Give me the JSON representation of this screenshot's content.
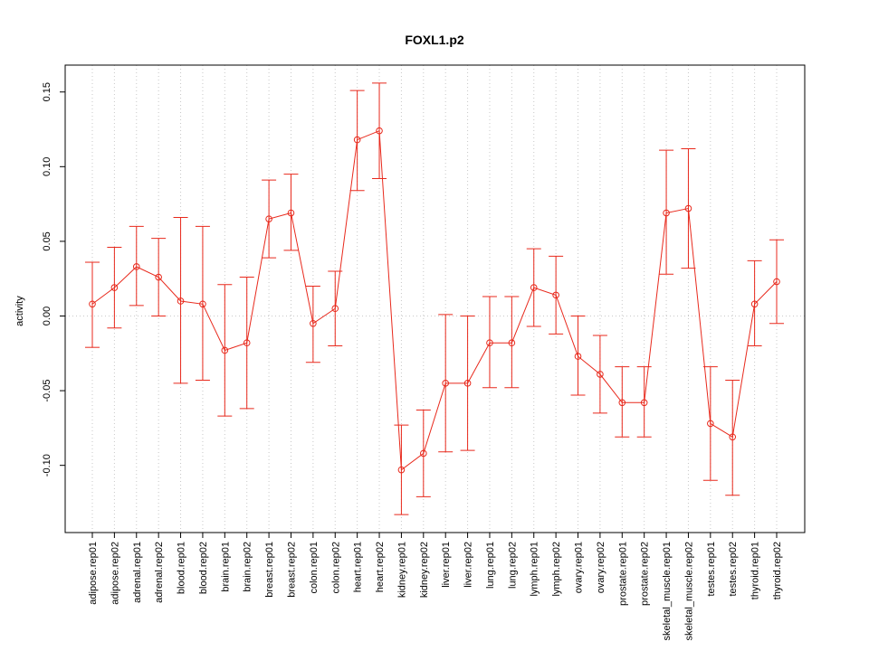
{
  "chart_data": {
    "type": "line",
    "title": "FOXL1.p2",
    "xlabel": "",
    "ylabel": "activity",
    "ylim": [
      -0.145,
      0.168
    ],
    "yticks": [
      -0.1,
      -0.05,
      0.0,
      0.05,
      0.1,
      0.15
    ],
    "ytick_labels": [
      "-0.10",
      "-0.05",
      "0.00",
      "0.05",
      "0.10",
      "0.15"
    ],
    "grid": true,
    "categories": [
      "adipose.rep01",
      "adipose.rep02",
      "adrenal.rep01",
      "adrenal.rep02",
      "blood.rep01",
      "blood.rep02",
      "brain.rep01",
      "brain.rep02",
      "breast.rep01",
      "breast.rep02",
      "colon.rep01",
      "colon.rep02",
      "heart.rep01",
      "heart.rep02",
      "kidney.rep01",
      "kidney.rep02",
      "liver.rep01",
      "liver.rep02",
      "lung.rep01",
      "lung.rep02",
      "lymph.rep01",
      "lymph.rep02",
      "ovary.rep01",
      "ovary.rep02",
      "prostate.rep01",
      "prostate.rep02",
      "skeletal_muscle.rep01",
      "skeletal_muscle.rep02",
      "testes.rep01",
      "testes.rep02",
      "thyroid.rep01",
      "thyroid.rep02"
    ],
    "series": [
      {
        "values": [
          0.008,
          0.019,
          0.033,
          0.026,
          0.01,
          0.008,
          -0.023,
          -0.018,
          0.065,
          0.069,
          -0.005,
          0.005,
          0.118,
          0.124,
          -0.103,
          -0.092,
          -0.045,
          -0.045,
          -0.018,
          -0.018,
          0.019,
          0.014,
          -0.027,
          -0.039,
          -0.058,
          -0.058,
          0.069,
          0.072,
          -0.072,
          -0.081,
          0.008,
          0.023
        ],
        "lower": [
          -0.021,
          -0.008,
          0.007,
          0.0,
          -0.045,
          -0.043,
          -0.067,
          -0.062,
          0.039,
          0.044,
          -0.031,
          -0.02,
          0.084,
          0.092,
          -0.133,
          -0.121,
          -0.091,
          -0.09,
          -0.048,
          -0.048,
          -0.007,
          -0.012,
          -0.053,
          -0.065,
          -0.081,
          -0.081,
          0.028,
          0.032,
          -0.11,
          -0.12,
          -0.02,
          -0.005
        ],
        "upper": [
          0.036,
          0.046,
          0.06,
          0.052,
          0.066,
          0.06,
          0.021,
          0.026,
          0.091,
          0.095,
          0.02,
          0.03,
          0.151,
          0.156,
          -0.073,
          -0.063,
          0.001,
          0.0,
          0.013,
          0.013,
          0.045,
          0.04,
          0.0,
          -0.013,
          -0.034,
          -0.034,
          0.111,
          0.112,
          -0.034,
          -0.043,
          0.037,
          0.051
        ],
        "color": "#e8291c"
      }
    ]
  }
}
